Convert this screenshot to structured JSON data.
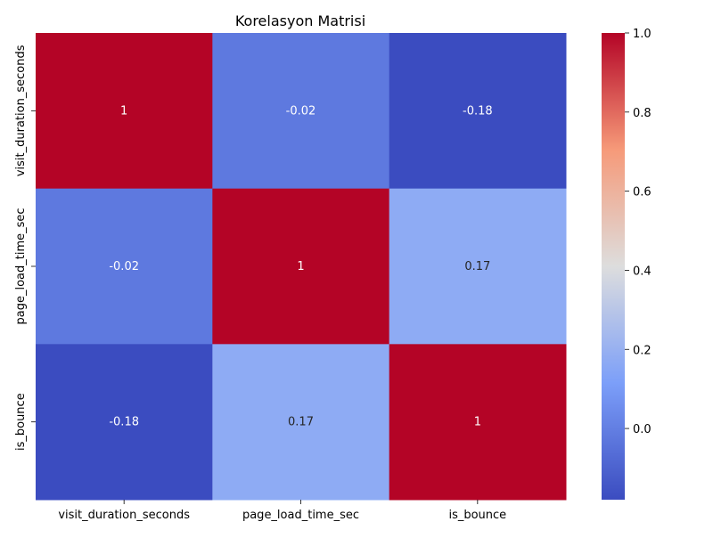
{
  "chart_data": {
    "type": "heatmap",
    "title": "Korelasyon Matrisi",
    "rows": [
      "visit_duration_seconds",
      "page_load_time_sec",
      "is_bounce"
    ],
    "columns": [
      "visit_duration_seconds",
      "page_load_time_sec",
      "is_bounce"
    ],
    "values": [
      [
        1,
        -0.02,
        -0.18
      ],
      [
        -0.02,
        1,
        0.17
      ],
      [
        -0.18,
        0.17,
        1
      ]
    ],
    "cell_labels": [
      [
        "1",
        "-0.02",
        "-0.18"
      ],
      [
        "-0.02",
        "1",
        "0.17"
      ],
      [
        "-0.18",
        "0.17",
        "1"
      ]
    ],
    "colormap": "coolwarm",
    "color_range": [
      -0.18,
      1.0
    ],
    "colorbar_ticks": [
      "0.0",
      "0.2",
      "0.4",
      "0.6",
      "0.8",
      "1.0"
    ],
    "colorbar_tick_values": [
      0.0,
      0.2,
      0.4,
      0.6,
      0.8,
      1.0
    ]
  }
}
